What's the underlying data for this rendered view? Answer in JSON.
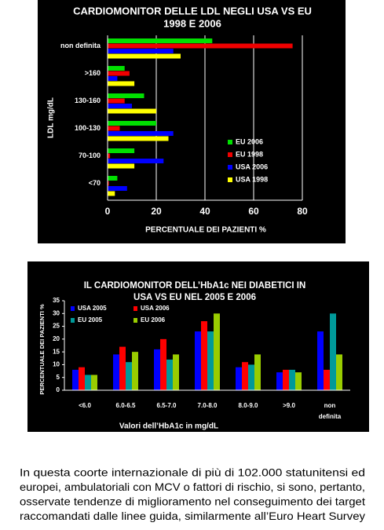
{
  "chart_data": [
    {
      "type": "hbar",
      "title": [
        "CARDIOMONITOR DELLE LDL NEGLI USA VS  EU",
        "1998 E 2006"
      ],
      "y_label": "LDL mg/dL",
      "x_label": "PERCENTUALE DEI PAZIENTI %",
      "categories": [
        "non definita",
        ">160",
        "130-160",
        "100-130",
        "70-100",
        "<70"
      ],
      "series": [
        {
          "name": "EU 2006",
          "color": "#00e000",
          "values": [
            43,
            7,
            15,
            20,
            11,
            4
          ]
        },
        {
          "name": "EU  1998",
          "color": "#f00000",
          "values": [
            76,
            9,
            7,
            5,
            1,
            0.5
          ]
        },
        {
          "name": "USA 2006",
          "color": "#0000ff",
          "values": [
            27,
            4,
            10,
            27,
            23,
            8
          ]
        },
        {
          "name": "USA 1998",
          "color": "#ffff00",
          "values": [
            30,
            11,
            20,
            25,
            11,
            3
          ]
        }
      ],
      "xlim": [
        0,
        80
      ],
      "xticks": [
        0,
        20,
        40,
        60,
        80
      ],
      "grid": true,
      "legend": "lower-right"
    },
    {
      "type": "bar",
      "title": [
        "IL CARDIOMONITOR DELL’HbA1c NEI DIABETICI IN",
        "USA VS EU NEL 2005 E 2006"
      ],
      "y_label": "PERCENTUALE DEI PAZIENTI %",
      "x_label": "Valori dell’HbA1c in mg/dL",
      "categories": [
        "<6.0",
        "6.0-6.5",
        "6.5-7.0",
        "7.0-8.0",
        "8.0-9.0",
        ">9.0",
        "non definita"
      ],
      "series": [
        {
          "name": "USA 2005",
          "color": "#0000ff",
          "values": [
            8,
            14,
            16,
            23,
            9,
            7,
            23
          ]
        },
        {
          "name": "USA 2006",
          "color": "#ff0000",
          "values": [
            9,
            17,
            20,
            27,
            11,
            8,
            8
          ]
        },
        {
          "name": "EU 2005",
          "color": "#009999",
          "values": [
            6,
            11,
            12,
            23,
            10,
            8,
            30
          ]
        },
        {
          "name": "EU 2006",
          "color": "#99cc00",
          "values": [
            6,
            15,
            14,
            30,
            14,
            7,
            14
          ]
        }
      ],
      "ylim": [
        0,
        35
      ],
      "yticks": [
        0,
        5,
        10,
        15,
        20,
        25,
        30,
        35
      ],
      "grid": false,
      "legend": "upper-left"
    }
  ],
  "caption": [
    "In questa coorte internazionale di più di 102.000 statunitensi ed",
    "europei, ambulatoriali con MCV o fattori di rischio, si sono, pertanto,",
    "osservate tendenze di miglioramento nel conseguimento dei target",
    "raccomandati dalle linee guida, similarmente all’Euro Heart Survey"
  ]
}
